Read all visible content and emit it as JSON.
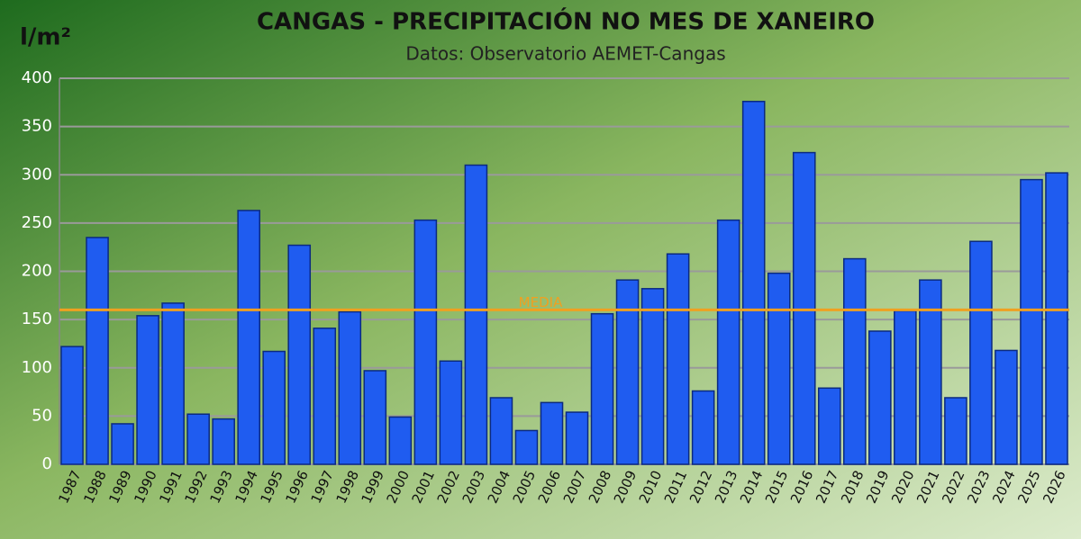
{
  "chart_data": {
    "type": "bar",
    "title": "CANGAS - PRECIPITACIÓN NO MES DE XANEIRO",
    "subtitle": "Datos: Observatorio AEMET-Cangas",
    "y_label": "l/m²",
    "categories": [
      "1987",
      "1988",
      "1989",
      "1990",
      "1991",
      "1992",
      "1993",
      "1994",
      "1995",
      "1996",
      "1997",
      "1998",
      "1999",
      "2000",
      "2001",
      "2002",
      "2003",
      "2004",
      "2005",
      "2006",
      "2007",
      "2008",
      "2009",
      "2010",
      "2011",
      "2012",
      "2013",
      "2014",
      "2015",
      "2016",
      "2017",
      "2018",
      "2019",
      "2020",
      "2021",
      "2022",
      "2023",
      "2024",
      "2025",
      "2026"
    ],
    "values": [
      122,
      235,
      42,
      154,
      167,
      52,
      47,
      263,
      117,
      227,
      141,
      158,
      97,
      49,
      253,
      107,
      310,
      69,
      35,
      64,
      54,
      156,
      191,
      182,
      218,
      76,
      253,
      376,
      198,
      323,
      79,
      213,
      138,
      159,
      191,
      69,
      231,
      118,
      295,
      302
    ],
    "color": "#1f5cf0",
    "ylim": [
      0,
      400
    ],
    "yticks": [
      0,
      50,
      100,
      150,
      200,
      250,
      300,
      350,
      400
    ],
    "grid": true,
    "reference_line": {
      "value": 160,
      "label": "MEDIA",
      "color": "#f0a020"
    }
  }
}
